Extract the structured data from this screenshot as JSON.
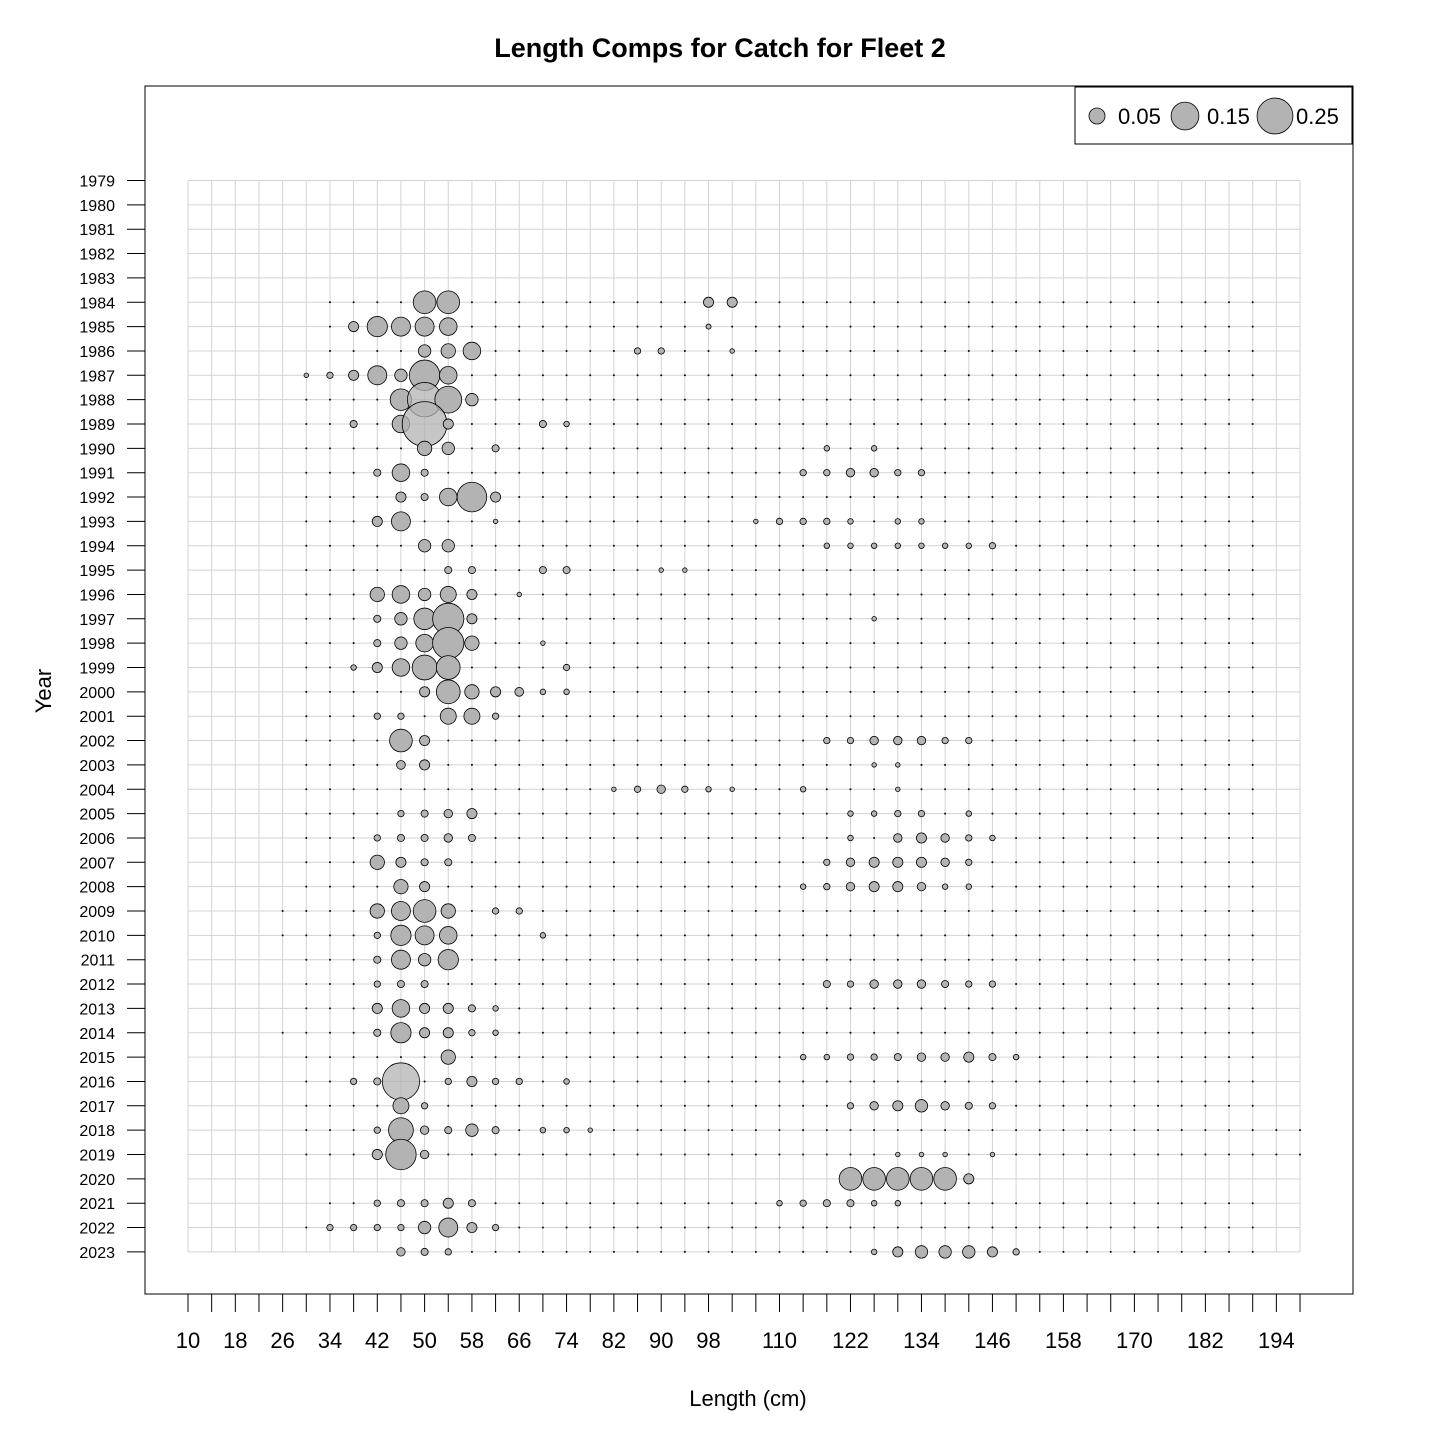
{
  "chart_data": {
    "type": "scatter",
    "subtype": "bubble",
    "title": "Length Comps for Catch for Fleet 2",
    "xlabel": "Length (cm)",
    "ylabel": "Year",
    "x_tick_labels": [
      "10",
      "18",
      "26",
      "34",
      "42",
      "50",
      "58",
      "66",
      "74",
      "82",
      "90",
      "98",
      "110",
      "122",
      "134",
      "146",
      "158",
      "170",
      "182",
      "194"
    ],
    "length_bins": [
      10,
      14,
      18,
      22,
      26,
      30,
      34,
      38,
      42,
      46,
      50,
      54,
      58,
      62,
      66,
      70,
      74,
      78,
      82,
      86,
      90,
      94,
      98,
      102,
      106,
      110,
      114,
      118,
      122,
      126,
      130,
      134,
      138,
      142,
      146,
      150,
      154,
      158,
      162,
      166,
      170,
      174,
      178,
      182,
      186,
      190,
      194,
      198
    ],
    "years": [
      1979,
      1980,
      1981,
      1982,
      1983,
      1984,
      1985,
      1986,
      1987,
      1988,
      1989,
      1990,
      1991,
      1992,
      1993,
      1994,
      1995,
      1996,
      1997,
      1998,
      1999,
      2000,
      2001,
      2002,
      2003,
      2004,
      2005,
      2006,
      2007,
      2008,
      2009,
      2010,
      2011,
      2012,
      2013,
      2014,
      2015,
      2016,
      2017,
      2018,
      2019,
      2020,
      2021,
      2022,
      2023
    ],
    "grid": true,
    "legend": {
      "position": "top-right",
      "sizes": [
        0.05,
        0.15,
        0.25
      ],
      "labels": [
        "0.05",
        "0.15",
        "0.25"
      ]
    },
    "marker_fill": "#b3b3b3",
    "marker_stroke": "#000000",
    "grid_color": "#d3d3d3",
    "observed_years": {
      "1984": {
        "start": 34,
        "end": 190,
        "v": {
          "50": 0.1,
          "54": 0.1,
          "98": 0.02,
          "102": 0.02
        }
      },
      "1985": {
        "start": 34,
        "end": 190,
        "v": {
          "38": 0.02,
          "42": 0.08,
          "46": 0.07,
          "50": 0.07,
          "54": 0.06,
          "98": 0.005
        }
      },
      "1986": {
        "start": 34,
        "end": 190,
        "v": {
          "50": 0.03,
          "54": 0.04,
          "58": 0.06,
          "86": 0.008,
          "90": 0.008,
          "102": 0.004
        }
      },
      "1987": {
        "start": 30,
        "end": 190,
        "v": {
          "30": 0.004,
          "34": 0.008,
          "38": 0.02,
          "42": 0.07,
          "46": 0.03,
          "50": 0.18,
          "54": 0.06
        }
      },
      "1988": {
        "start": 30,
        "end": 190,
        "v": {
          "46": 0.09,
          "50": 0.23,
          "54": 0.14,
          "58": 0.03
        }
      },
      "1989": {
        "start": 30,
        "end": 190,
        "v": {
          "38": 0.01,
          "46": 0.06,
          "50": 0.39,
          "54": 0.02,
          "70": 0.01,
          "74": 0.006
        }
      },
      "1990": {
        "start": 30,
        "end": 182,
        "v": {
          "50": 0.04,
          "54": 0.03,
          "62": 0.01,
          "118": 0.006,
          "126": 0.006
        }
      },
      "1991": {
        "start": 30,
        "end": 190,
        "v": {
          "42": 0.01,
          "46": 0.06,
          "50": 0.01,
          "114": 0.008,
          "118": 0.008,
          "122": 0.014,
          "126": 0.014,
          "130": 0.008,
          "134": 0.008
        }
      },
      "1992": {
        "start": 30,
        "end": 190,
        "v": {
          "46": 0.02,
          "50": 0.01,
          "54": 0.06,
          "58": 0.17,
          "62": 0.02
        }
      },
      "1993": {
        "start": 30,
        "end": 190,
        "v": {
          "42": 0.02,
          "46": 0.07,
          "62": 0.004,
          "106": 0.004,
          "110": 0.008,
          "114": 0.008,
          "118": 0.008,
          "122": 0.006,
          "130": 0.006,
          "134": 0.006
        }
      },
      "1994": {
        "start": 30,
        "end": 190,
        "v": {
          "50": 0.03,
          "54": 0.03,
          "118": 0.006,
          "122": 0.006,
          "126": 0.006,
          "130": 0.006,
          "134": 0.006,
          "138": 0.006,
          "142": 0.006,
          "146": 0.008
        }
      },
      "1995": {
        "start": 30,
        "end": 190,
        "v": {
          "54": 0.01,
          "58": 0.01,
          "70": 0.01,
          "74": 0.01,
          "90": 0.004,
          "94": 0.004
        }
      },
      "1996": {
        "start": 30,
        "end": 190,
        "v": {
          "42": 0.04,
          "46": 0.06,
          "50": 0.03,
          "54": 0.05,
          "58": 0.02,
          "66": 0.004
        }
      },
      "1997": {
        "start": 30,
        "end": 190,
        "v": {
          "42": 0.01,
          "46": 0.03,
          "50": 0.09,
          "54": 0.19,
          "58": 0.02,
          "126": 0.004
        }
      },
      "1998": {
        "start": 30,
        "end": 190,
        "v": {
          "42": 0.01,
          "46": 0.03,
          "50": 0.06,
          "54": 0.19,
          "58": 0.04,
          "70": 0.004
        }
      },
      "1999": {
        "start": 30,
        "end": 190,
        "v": {
          "38": 0.006,
          "42": 0.02,
          "46": 0.06,
          "50": 0.12,
          "54": 0.11,
          "74": 0.008
        }
      },
      "2000": {
        "start": 30,
        "end": 190,
        "v": {
          "50": 0.02,
          "54": 0.11,
          "58": 0.04,
          "62": 0.02,
          "66": 0.015,
          "70": 0.006,
          "74": 0.006
        }
      },
      "2001": {
        "start": 30,
        "end": 190,
        "v": {
          "42": 0.008,
          "46": 0.008,
          "54": 0.05,
          "58": 0.05,
          "62": 0.008
        }
      },
      "2002": {
        "start": 30,
        "end": 190,
        "v": {
          "46": 0.1,
          "50": 0.02,
          "118": 0.008,
          "122": 0.008,
          "126": 0.014,
          "130": 0.014,
          "134": 0.014,
          "138": 0.008,
          "142": 0.008
        }
      },
      "2003": {
        "start": 30,
        "end": 190,
        "v": {
          "46": 0.015,
          "50": 0.02,
          "126": 0.004,
          "130": 0.004
        }
      },
      "2004": {
        "start": 30,
        "end": 190,
        "v": {
          "82": 0.004,
          "86": 0.008,
          "90": 0.014,
          "94": 0.008,
          "98": 0.006,
          "102": 0.004,
          "114": 0.006,
          "130": 0.004
        }
      },
      "2005": {
        "start": 30,
        "end": 190,
        "v": {
          "46": 0.008,
          "50": 0.01,
          "54": 0.014,
          "58": 0.02,
          "122": 0.006,
          "126": 0.006,
          "130": 0.008,
          "134": 0.008,
          "142": 0.006
        }
      },
      "2006": {
        "start": 30,
        "end": 190,
        "v": {
          "42": 0.008,
          "46": 0.01,
          "50": 0.01,
          "54": 0.014,
          "58": 0.01,
          "122": 0.006,
          "130": 0.014,
          "134": 0.02,
          "138": 0.014,
          "142": 0.008,
          "146": 0.006
        }
      },
      "2007": {
        "start": 30,
        "end": 190,
        "v": {
          "42": 0.04,
          "46": 0.02,
          "50": 0.01,
          "54": 0.01,
          "118": 0.008,
          "122": 0.014,
          "126": 0.02,
          "130": 0.02,
          "134": 0.02,
          "138": 0.014,
          "142": 0.008
        }
      },
      "2008": {
        "start": 30,
        "end": 190,
        "v": {
          "46": 0.04,
          "50": 0.02,
          "114": 0.006,
          "118": 0.008,
          "122": 0.014,
          "126": 0.02,
          "130": 0.02,
          "134": 0.014,
          "138": 0.006,
          "142": 0.006
        }
      },
      "2009": {
        "start": 26,
        "end": 190,
        "v": {
          "42": 0.04,
          "46": 0.07,
          "50": 0.1,
          "54": 0.04,
          "62": 0.008,
          "66": 0.008
        }
      },
      "2010": {
        "start": 26,
        "end": 190,
        "v": {
          "42": 0.008,
          "46": 0.08,
          "50": 0.07,
          "54": 0.06,
          "70": 0.006
        }
      },
      "2011": {
        "start": 30,
        "end": 190,
        "v": {
          "42": 0.01,
          "46": 0.07,
          "50": 0.03,
          "54": 0.08
        }
      },
      "2012": {
        "start": 30,
        "end": 190,
        "v": {
          "42": 0.008,
          "46": 0.01,
          "50": 0.01,
          "118": 0.01,
          "122": 0.008,
          "126": 0.014,
          "130": 0.014,
          "134": 0.014,
          "138": 0.01,
          "142": 0.008,
          "146": 0.008
        }
      },
      "2013": {
        "start": 30,
        "end": 190,
        "v": {
          "42": 0.02,
          "46": 0.06,
          "50": 0.02,
          "54": 0.02,
          "58": 0.01,
          "62": 0.006
        }
      },
      "2014": {
        "start": 26,
        "end": 190,
        "v": {
          "42": 0.01,
          "46": 0.08,
          "50": 0.02,
          "54": 0.02,
          "58": 0.008,
          "62": 0.006
        }
      },
      "2015": {
        "start": 30,
        "end": 190,
        "v": {
          "54": 0.04,
          "114": 0.006,
          "118": 0.006,
          "122": 0.008,
          "126": 0.008,
          "130": 0.01,
          "134": 0.014,
          "138": 0.014,
          "142": 0.02,
          "146": 0.01,
          "150": 0.006
        }
      },
      "2016": {
        "start": 30,
        "end": 190,
        "v": {
          "38": 0.008,
          "42": 0.01,
          "46": 0.27,
          "54": 0.008,
          "58": 0.02,
          "62": 0.008,
          "66": 0.008,
          "74": 0.006
        }
      },
      "2017": {
        "start": 30,
        "end": 190,
        "v": {
          "46": 0.05,
          "50": 0.008,
          "122": 0.008,
          "126": 0.014,
          "130": 0.02,
          "134": 0.03,
          "138": 0.014,
          "142": 0.01,
          "146": 0.008
        }
      },
      "2018": {
        "start": 30,
        "end": 198,
        "v": {
          "42": 0.008,
          "46": 0.12,
          "50": 0.014,
          "54": 0.01,
          "58": 0.03,
          "62": 0.01,
          "70": 0.006,
          "74": 0.006,
          "78": 0.004
        }
      },
      "2019": {
        "start": 30,
        "end": 198,
        "v": {
          "42": 0.02,
          "46": 0.18,
          "50": 0.014,
          "130": 0.004,
          "134": 0.004,
          "138": 0.004,
          "146": 0.004
        }
      },
      "2020": {
        "start": 122,
        "end": 142,
        "v": {
          "122": 0.1,
          "126": 0.1,
          "130": 0.1,
          "134": 0.1,
          "138": 0.1,
          "142": 0.02
        }
      },
      "2021": {
        "start": 34,
        "end": 190,
        "v": {
          "42": 0.008,
          "46": 0.01,
          "50": 0.01,
          "54": 0.02,
          "58": 0.01,
          "110": 0.006,
          "114": 0.008,
          "118": 0.01,
          "122": 0.01,
          "126": 0.006,
          "130": 0.006
        }
      },
      "2022": {
        "start": 30,
        "end": 190,
        "v": {
          "34": 0.008,
          "38": 0.008,
          "42": 0.008,
          "46": 0.008,
          "50": 0.03,
          "54": 0.07,
          "58": 0.02,
          "62": 0.008
        }
      },
      "2023": {
        "start": 46,
        "end": 190,
        "v": {
          "46": 0.014,
          "50": 0.01,
          "54": 0.008,
          "126": 0.006,
          "130": 0.02,
          "134": 0.03,
          "138": 0.03,
          "142": 0.03,
          "146": 0.02,
          "150": 0.008
        }
      }
    }
  }
}
